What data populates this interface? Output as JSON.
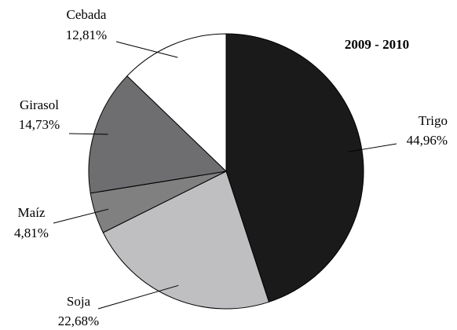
{
  "chart_data": {
    "type": "pie",
    "title": "2009 - 2010",
    "categories": [
      "Trigo",
      "Soja",
      "Maíz",
      "Girasol",
      "Cebada"
    ],
    "values": [
      44.96,
      22.68,
      4.81,
      14.73,
      12.81
    ],
    "value_labels": [
      "44,96%",
      "22,68%",
      "4,81%",
      "14,73%",
      "12,81%"
    ],
    "colors": [
      "#1a1a1a",
      "#bfbfc1",
      "#808080",
      "#6e6e70",
      "#ffffff"
    ]
  }
}
